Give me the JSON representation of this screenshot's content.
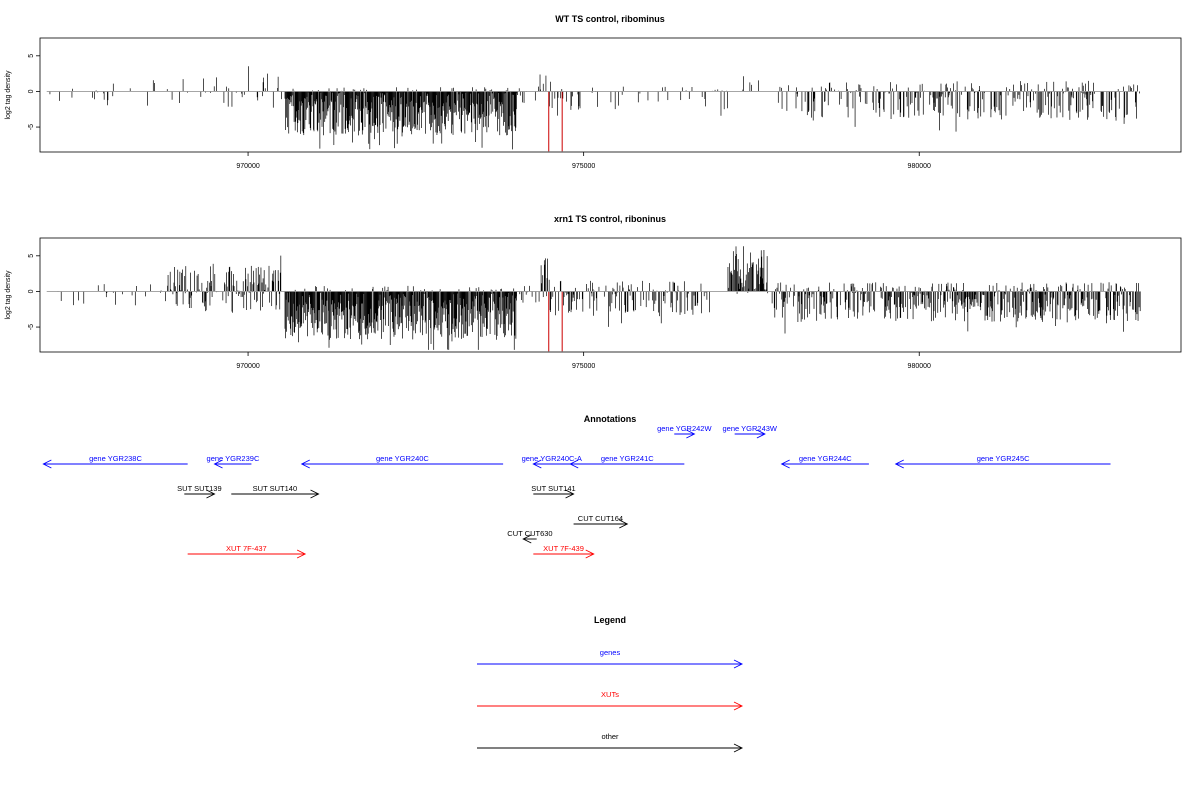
{
  "chart_data": [
    {
      "type": "bar",
      "title": "WT TS control, ribominus",
      "xlabel": "",
      "ylabel": "log2 tag density",
      "xlim": [
        966900,
        983900
      ],
      "ylim": [
        -8.5,
        7.5
      ],
      "xticks": [
        970000,
        975000,
        980000
      ],
      "xtick_labels": [
        "970000",
        "975000",
        "980000"
      ],
      "yticks": [
        -5,
        0,
        5
      ],
      "ytick_labels": [
        "-5",
        "0",
        "5"
      ],
      "baseline": 0,
      "colors": {
        "bars": "#000000",
        "baseline": "#999999",
        "markers": "#cc0000"
      },
      "markers_x": [
        974480,
        974680
      ],
      "marker_ymin": -8.4,
      "segments": [
        {
          "x0": 967000,
          "x1": 968100,
          "mean": -0.4,
          "amp": 1.6,
          "density": 0.07
        },
        {
          "x0": 968100,
          "x1": 969000,
          "mean": -0.2,
          "amp": 1.8,
          "density": 0.09
        },
        {
          "x0": 969000,
          "x1": 970500,
          "mean": 0.0,
          "amp": 2.3,
          "density": 0.16
        },
        {
          "x0": 970550,
          "x1": 974000,
          "mean": -2.8,
          "amp": 3.4,
          "density": 1.0
        },
        {
          "x0": 974000,
          "x1": 974350,
          "mean": -0.5,
          "amp": 1.2,
          "density": 0.15
        },
        {
          "x0": 974350,
          "x1": 974450,
          "mean": 1.5,
          "amp": 1.8,
          "density": 0.35
        },
        {
          "x0": 974450,
          "x1": 974950,
          "mean": -0.6,
          "amp": 2.0,
          "density": 0.25
        },
        {
          "x0": 974950,
          "x1": 977300,
          "mean": -0.9,
          "amp": 1.6,
          "density": 0.12
        },
        {
          "x0": 977300,
          "x1": 977650,
          "mean": 1.0,
          "amp": 1.3,
          "density": 0.15
        },
        {
          "x0": 977900,
          "x1": 979500,
          "mean": -1.2,
          "amp": 2.5,
          "density": 0.3
        },
        {
          "x0": 979500,
          "x1": 983300,
          "mean": -1.3,
          "amp": 2.8,
          "density": 0.45
        }
      ]
    },
    {
      "type": "bar",
      "title": "xrn1 TS control, riboninus",
      "xlabel": "",
      "ylabel": "log2 tag density",
      "xlim": [
        966900,
        983900
      ],
      "ylim": [
        -8.5,
        7.5
      ],
      "xticks": [
        970000,
        975000,
        980000
      ],
      "xtick_labels": [
        "970000",
        "975000",
        "980000"
      ],
      "yticks": [
        -5,
        0,
        5
      ],
      "ytick_labels": [
        "-5",
        "0",
        "5"
      ],
      "baseline": 0,
      "colors": {
        "bars": "#000000",
        "baseline": "#999999",
        "markers": "#cc0000"
      },
      "markers_x": [
        974480,
        974680
      ],
      "marker_ymin": -8.4,
      "segments": [
        {
          "x0": 967000,
          "x1": 968800,
          "mean": -0.5,
          "amp": 1.6,
          "density": 0.12
        },
        {
          "x0": 968800,
          "x1": 970500,
          "mean": 0.3,
          "amp": 3.3,
          "density": 0.6
        },
        {
          "x0": 970550,
          "x1": 974000,
          "mean": -3.0,
          "amp": 3.8,
          "density": 1.0
        },
        {
          "x0": 974000,
          "x1": 974350,
          "mean": -0.5,
          "amp": 1.5,
          "density": 0.25
        },
        {
          "x0": 974350,
          "x1": 974500,
          "mean": 2.0,
          "amp": 3.0,
          "density": 0.5
        },
        {
          "x0": 974500,
          "x1": 976900,
          "mean": -1.0,
          "amp": 2.5,
          "density": 0.4
        },
        {
          "x0": 977150,
          "x1": 977750,
          "mean": 3.0,
          "amp": 3.5,
          "density": 0.8
        },
        {
          "x0": 977800,
          "x1": 979500,
          "mean": -1.5,
          "amp": 2.8,
          "density": 0.6
        },
        {
          "x0": 979500,
          "x1": 983300,
          "mean": -1.5,
          "amp": 2.8,
          "density": 0.7
        }
      ]
    },
    {
      "type": "diagram",
      "title": "Annotations",
      "xlim": [
        966900,
        983900
      ],
      "features": [
        {
          "label": "gene YGR238C",
          "x0": 966950,
          "x1": 969100,
          "dir": "left",
          "row": 0,
          "color": "#0000ff"
        },
        {
          "label": "gene YGR239C",
          "x0": 969500,
          "x1": 970050,
          "dir": "left",
          "row": 0,
          "color": "#0000ff"
        },
        {
          "label": "gene YGR240C",
          "x0": 970800,
          "x1": 973800,
          "dir": "left",
          "row": 0,
          "color": "#0000ff"
        },
        {
          "label": "gene YGR240C-A",
          "x0": 974250,
          "x1": 974800,
          "dir": "left",
          "row": 0,
          "color": "#0000ff"
        },
        {
          "label": "gene YGR241C",
          "x0": 974800,
          "x1": 976500,
          "dir": "left",
          "row": 0,
          "color": "#0000ff"
        },
        {
          "label": "gene YGR242W",
          "x0": 976350,
          "x1": 976650,
          "dir": "right",
          "row": -1,
          "color": "#0000ff"
        },
        {
          "label": "gene YGR243W",
          "x0": 977250,
          "x1": 977700,
          "dir": "right",
          "row": -1,
          "color": "#0000ff"
        },
        {
          "label": "gene YGR244C",
          "x0": 977950,
          "x1": 979250,
          "dir": "left",
          "row": 0,
          "color": "#0000ff"
        },
        {
          "label": "gene YGR245C",
          "x0": 979650,
          "x1": 982850,
          "dir": "left",
          "row": 0,
          "color": "#0000ff"
        },
        {
          "label": "SUT SUT139",
          "x0": 969050,
          "x1": 969500,
          "dir": "right",
          "row": 1,
          "color": "#000000"
        },
        {
          "label": "SUT SUT140",
          "x0": 969750,
          "x1": 971050,
          "dir": "right",
          "row": 1,
          "color": "#000000"
        },
        {
          "label": "SUT SUT141",
          "x0": 974250,
          "x1": 974850,
          "dir": "right",
          "row": 1,
          "color": "#000000"
        },
        {
          "label": "CUT CUT164",
          "x0": 974850,
          "x1": 975650,
          "dir": "right",
          "row": 2,
          "color": "#000000"
        },
        {
          "label": "CUT CUT630",
          "x0": 974100,
          "x1": 974300,
          "dir": "left",
          "row": 2.5,
          "color": "#000000"
        },
        {
          "label": "XUT 7F-437",
          "x0": 969100,
          "x1": 970850,
          "dir": "right",
          "row": 3,
          "color": "#ff0000"
        },
        {
          "label": "XUT 7F-439",
          "x0": 974250,
          "x1": 975150,
          "dir": "right",
          "row": 3,
          "color": "#ff0000"
        }
      ]
    },
    {
      "type": "legend",
      "title": "Legend",
      "items": [
        {
          "label": "genes",
          "color": "#0000ff"
        },
        {
          "label": "XUTs",
          "color": "#ff0000"
        },
        {
          "label": "other",
          "color": "#000000"
        }
      ]
    }
  ]
}
